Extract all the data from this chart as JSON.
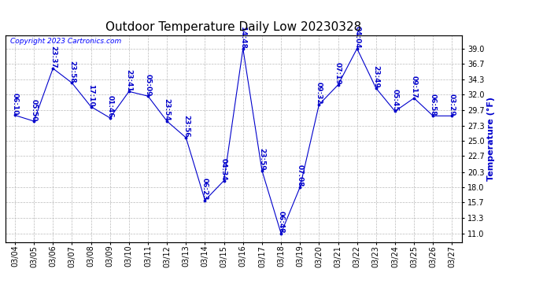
{
  "title": "Outdoor Temperature Daily Low 20230328",
  "ylabel": "Temperature (°F)",
  "copyright": "Copyright 2023 Cartronics.com",
  "background_color": "#ffffff",
  "plot_bg_color": "#ffffff",
  "line_color": "#0000cc",
  "grid_color": "#bbbbbb",
  "x_dates": [
    "03/04",
    "03/05",
    "03/06",
    "03/07",
    "03/08",
    "03/09",
    "03/10",
    "03/11",
    "03/12",
    "03/13",
    "03/14",
    "03/15",
    "03/16",
    "03/17",
    "03/18",
    "03/19",
    "03/20",
    "03/21",
    "03/22",
    "03/23",
    "03/24",
    "03/25",
    "03/26",
    "03/27"
  ],
  "data_points": [
    {
      "date": "03/04",
      "time": "06:10",
      "temp": 28.9
    },
    {
      "date": "03/05",
      "time": "05:50",
      "temp": 28.0
    },
    {
      "date": "03/06",
      "time": "23:37",
      "temp": 36.0
    },
    {
      "date": "03/07",
      "time": "23:58",
      "temp": 33.8
    },
    {
      "date": "03/08",
      "time": "17:10",
      "temp": 30.2
    },
    {
      "date": "03/09",
      "time": "01:46",
      "temp": 28.5
    },
    {
      "date": "03/10",
      "time": "23:41",
      "temp": 32.5
    },
    {
      "date": "03/11",
      "time": "05:09",
      "temp": 31.8
    },
    {
      "date": "03/12",
      "time": "23:54",
      "temp": 28.0
    },
    {
      "date": "03/13",
      "time": "23:56",
      "temp": 25.5
    },
    {
      "date": "03/14",
      "time": "06:23",
      "temp": 16.0
    },
    {
      "date": "03/15",
      "time": "04:34",
      "temp": 19.0
    },
    {
      "date": "03/16",
      "time": "14:48",
      "temp": 39.0
    },
    {
      "date": "03/17",
      "time": "23:59",
      "temp": 20.5
    },
    {
      "date": "03/18",
      "time": "06:48",
      "temp": 11.0
    },
    {
      "date": "03/19",
      "time": "07:08",
      "temp": 18.0
    },
    {
      "date": "03/20",
      "time": "09:32",
      "temp": 30.5
    },
    {
      "date": "03/21",
      "time": "07:19",
      "temp": 33.5
    },
    {
      "date": "03/22",
      "time": "04:04",
      "temp": 39.0
    },
    {
      "date": "03/23",
      "time": "23:49",
      "temp": 33.0
    },
    {
      "date": "03/24",
      "time": "05:45",
      "temp": 29.5
    },
    {
      "date": "03/25",
      "time": "09:17",
      "temp": 31.5
    },
    {
      "date": "03/26",
      "time": "06:58",
      "temp": 28.8
    },
    {
      "date": "03/27",
      "time": "03:29",
      "temp": 28.8
    }
  ],
  "ylim": [
    9.7,
    41.0
  ],
  "yticks": [
    11.0,
    13.3,
    15.7,
    18.0,
    20.3,
    22.7,
    25.0,
    27.3,
    29.7,
    32.0,
    34.3,
    36.7,
    39.0
  ],
  "title_fontsize": 11,
  "ylabel_fontsize": 8,
  "tick_fontsize": 7,
  "annotation_fontsize": 6.5,
  "copyright_fontsize": 6.5
}
